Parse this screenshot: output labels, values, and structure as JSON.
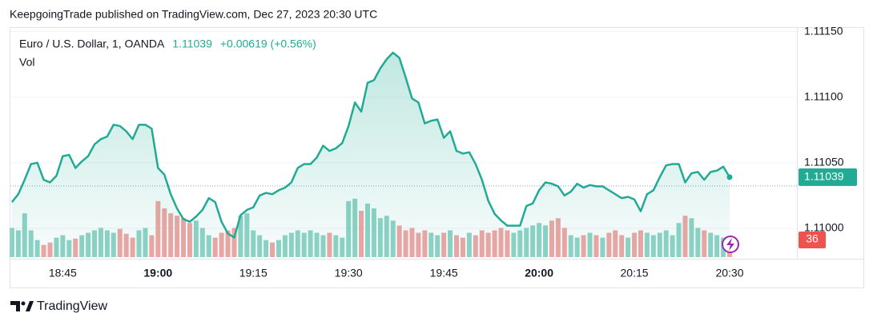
{
  "header": {
    "text": "KeepgoingTrade published on TradingView.com, Dec 27, 2023 20:30 UTC"
  },
  "footer": {
    "brand": "TradingView"
  },
  "chart_data": {
    "type": "line",
    "change": "+0.00619 (+0.56%)",
    "x": [
      "18:37",
      "18:38",
      "18:39",
      "18:40",
      "18:41",
      "18:42",
      "18:43",
      "18:44",
      "18:45",
      "18:46",
      "18:47",
      "18:48",
      "18:49",
      "18:50",
      "18:51",
      "18:52",
      "18:53",
      "18:54",
      "18:55",
      "18:56",
      "18:57",
      "18:58",
      "18:59",
      "19:00",
      "19:01",
      "19:02",
      "19:03",
      "19:04",
      "19:05",
      "19:06",
      "19:07",
      "19:08",
      "19:09",
      "19:10",
      "19:11",
      "19:12",
      "19:13",
      "19:14",
      "19:15",
      "19:16",
      "19:17",
      "19:18",
      "19:19",
      "19:20",
      "19:21",
      "19:22",
      "19:23",
      "19:24",
      "19:25",
      "19:26",
      "19:27",
      "19:28",
      "19:29",
      "19:30",
      "19:31",
      "19:32",
      "19:33",
      "19:34",
      "19:35",
      "19:36",
      "19:37",
      "19:38",
      "19:39",
      "19:40",
      "19:41",
      "19:42",
      "19:43",
      "19:44",
      "19:45",
      "19:46",
      "19:47",
      "19:48",
      "19:49",
      "19:50",
      "19:51",
      "19:52",
      "19:53",
      "19:54",
      "19:55",
      "19:56",
      "19:57",
      "19:58",
      "19:59",
      "20:00",
      "20:01",
      "20:02",
      "20:03",
      "20:04",
      "20:05",
      "20:06",
      "20:07",
      "20:08",
      "20:09",
      "20:10",
      "20:11",
      "20:12",
      "20:13",
      "20:14",
      "20:15",
      "20:16",
      "20:17",
      "20:18",
      "20:19",
      "20:20",
      "20:21",
      "20:22",
      "20:23",
      "20:24",
      "20:25",
      "20:26",
      "20:27",
      "20:28",
      "20:29",
      "20:30"
    ],
    "series": [
      {
        "name": "Euro / U.S. Dollar, 1, OANDA",
        "color": "#22ab94",
        "values": [
          1.1102,
          1.11026,
          1.11037,
          1.11049,
          1.1105,
          1.11037,
          1.11035,
          1.1104,
          1.11055,
          1.11056,
          1.11046,
          1.11051,
          1.11055,
          1.11064,
          1.11068,
          1.1107,
          1.11079,
          1.11078,
          1.11074,
          1.11068,
          1.11079,
          1.11079,
          1.11076,
          1.11046,
          1.11041,
          1.11026,
          1.11015,
          1.11007,
          1.11005,
          1.11009,
          1.11014,
          1.11023,
          1.1102,
          1.11005,
          1.10996,
          1.10993,
          1.1101,
          1.11014,
          1.11016,
          1.11025,
          1.11027,
          1.11026,
          1.11029,
          1.11031,
          1.11035,
          1.11046,
          1.11049,
          1.11049,
          1.11054,
          1.11063,
          1.11059,
          1.11061,
          1.11065,
          1.11078,
          1.11096,
          1.11089,
          1.11111,
          1.11113,
          1.11122,
          1.11129,
          1.11134,
          1.1113,
          1.11115,
          1.11099,
          1.11096,
          1.1108,
          1.11082,
          1.11083,
          1.11069,
          1.11074,
          1.11059,
          1.11057,
          1.11058,
          1.11049,
          1.11037,
          1.11021,
          1.11011,
          1.11006,
          1.11002,
          1.11002,
          1.11002,
          1.11017,
          1.11019,
          1.11029,
          1.11035,
          1.11034,
          1.11032,
          1.11025,
          1.11028,
          1.11034,
          1.11031,
          1.11033,
          1.11032,
          1.11032,
          1.11029,
          1.11026,
          1.11023,
          1.11024,
          1.11022,
          1.11013,
          1.11026,
          1.11029,
          1.11039,
          1.11048,
          1.11049,
          1.11049,
          1.11035,
          1.11042,
          1.11043,
          1.11037,
          1.11043,
          1.11044,
          1.11047,
          1.11039
        ]
      },
      {
        "name": "Vol",
        "up_color": "#8fd3c6",
        "down_color": "#f0a6a4",
        "values": [
          60,
          55,
          90,
          55,
          35,
          25,
          30,
          40,
          45,
          35,
          38,
          45,
          50,
          55,
          60,
          55,
          50,
          58,
          48,
          40,
          55,
          60,
          45,
          115,
          100,
          90,
          85,
          80,
          70,
          75,
          60,
          45,
          40,
          50,
          55,
          60,
          85,
          90,
          55,
          45,
          35,
          30,
          35,
          45,
          50,
          55,
          50,
          55,
          50,
          45,
          50,
          45,
          40,
          115,
          120,
          95,
          110,
          100,
          80,
          85,
          75,
          65,
          55,
          60,
          50,
          55,
          50,
          45,
          50,
          55,
          45,
          40,
          50,
          45,
          55,
          50,
          55,
          60,
          55,
          50,
          55,
          60,
          65,
          70,
          65,
          75,
          80,
          60,
          45,
          40,
          45,
          50,
          45,
          40,
          50,
          55,
          45,
          40,
          50,
          55,
          50,
          45,
          50,
          55,
          45,
          70,
          85,
          80,
          60,
          55,
          50,
          45,
          40,
          36
        ]
      }
    ],
    "ylim": [
      1.10978,
      1.11151
    ],
    "yticks": [
      {
        "value": 1.11,
        "label": "1.11000"
      },
      {
        "value": 1.1105,
        "label": "1.11050"
      },
      {
        "value": 1.111,
        "label": "1.11100"
      },
      {
        "value": 1.1115,
        "label": "1.11150"
      }
    ],
    "xticks": [
      "18:45",
      "19:00",
      "19:15",
      "19:30",
      "19:45",
      "20:00",
      "20:15",
      "20:30"
    ],
    "grid": true
  }
}
